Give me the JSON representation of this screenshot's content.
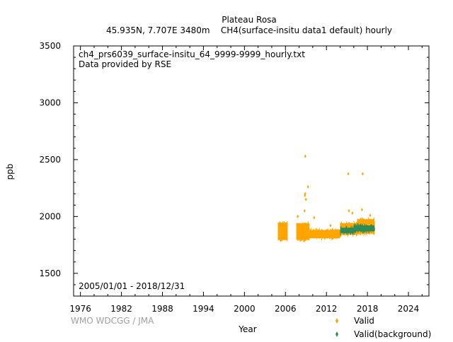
{
  "chart_data": {
    "type": "scatter",
    "title": "Plateau Rosa",
    "subtitle": "45.935N, 7.707E 3480m    CH4(surface-insitu data1 default) hourly",
    "annotations": [
      "ch4_prs6039_surface-insitu_64_9999-9999_hourly.txt",
      "Data provided by RSE"
    ],
    "date_range": "2005/01/01 - 2018/12/31",
    "credit": "WMO WDCGG / JMA",
    "xlabel": "Year",
    "ylabel": "ppb",
    "xlim": [
      1975,
      2027
    ],
    "ylim": [
      1300,
      3500
    ],
    "xticks": [
      1976,
      1982,
      1988,
      1994,
      2000,
      2006,
      2012,
      2018,
      2024
    ],
    "yticks": [
      1500,
      2000,
      2500,
      3000,
      3500
    ],
    "grid": false,
    "legend": "bottom-right",
    "series": [
      {
        "name": "Valid",
        "color": "#ffa500",
        "marker": "diamond",
        "bands": [
          {
            "x": [
              2004.9,
              2006.3
            ],
            "low": 1775,
            "high": 1965
          },
          {
            "x": [
              2007.6,
              2009.5
            ],
            "low": 1775,
            "high": 1960
          },
          {
            "x": [
              2009.5,
              2014.0
            ],
            "low": 1790,
            "high": 1900
          },
          {
            "x": [
              2014.0,
              2016.5
            ],
            "low": 1820,
            "high": 1960
          },
          {
            "x": [
              2016.5,
              2019.0
            ],
            "low": 1830,
            "high": 1995
          }
        ],
        "points": [
          [
            2008.9,
            2530
          ],
          [
            2015.2,
            2375
          ],
          [
            2017.3,
            2375
          ],
          [
            2009.3,
            2260
          ],
          [
            2008.9,
            2200
          ],
          [
            2008.85,
            2185
          ],
          [
            2009.0,
            2150
          ],
          [
            2008.8,
            2050
          ],
          [
            2007.8,
            2000
          ],
          [
            2015.3,
            2050
          ],
          [
            2015.8,
            2030
          ],
          [
            2017.2,
            2060
          ],
          [
            2018.4,
            2010
          ],
          [
            2005.3,
            1790
          ],
          [
            2010.2,
            1990
          ],
          [
            2012.6,
            1920
          ]
        ]
      },
      {
        "name": "Valid(background)",
        "color": "#2e8b57",
        "marker": "diamond",
        "bands": [
          {
            "x": [
              2014.0,
              2016.0
            ],
            "low": 1835,
            "high": 1920
          },
          {
            "x": [
              2016.0,
              2019.0
            ],
            "low": 1850,
            "high": 1940
          }
        ],
        "points": []
      }
    ]
  }
}
